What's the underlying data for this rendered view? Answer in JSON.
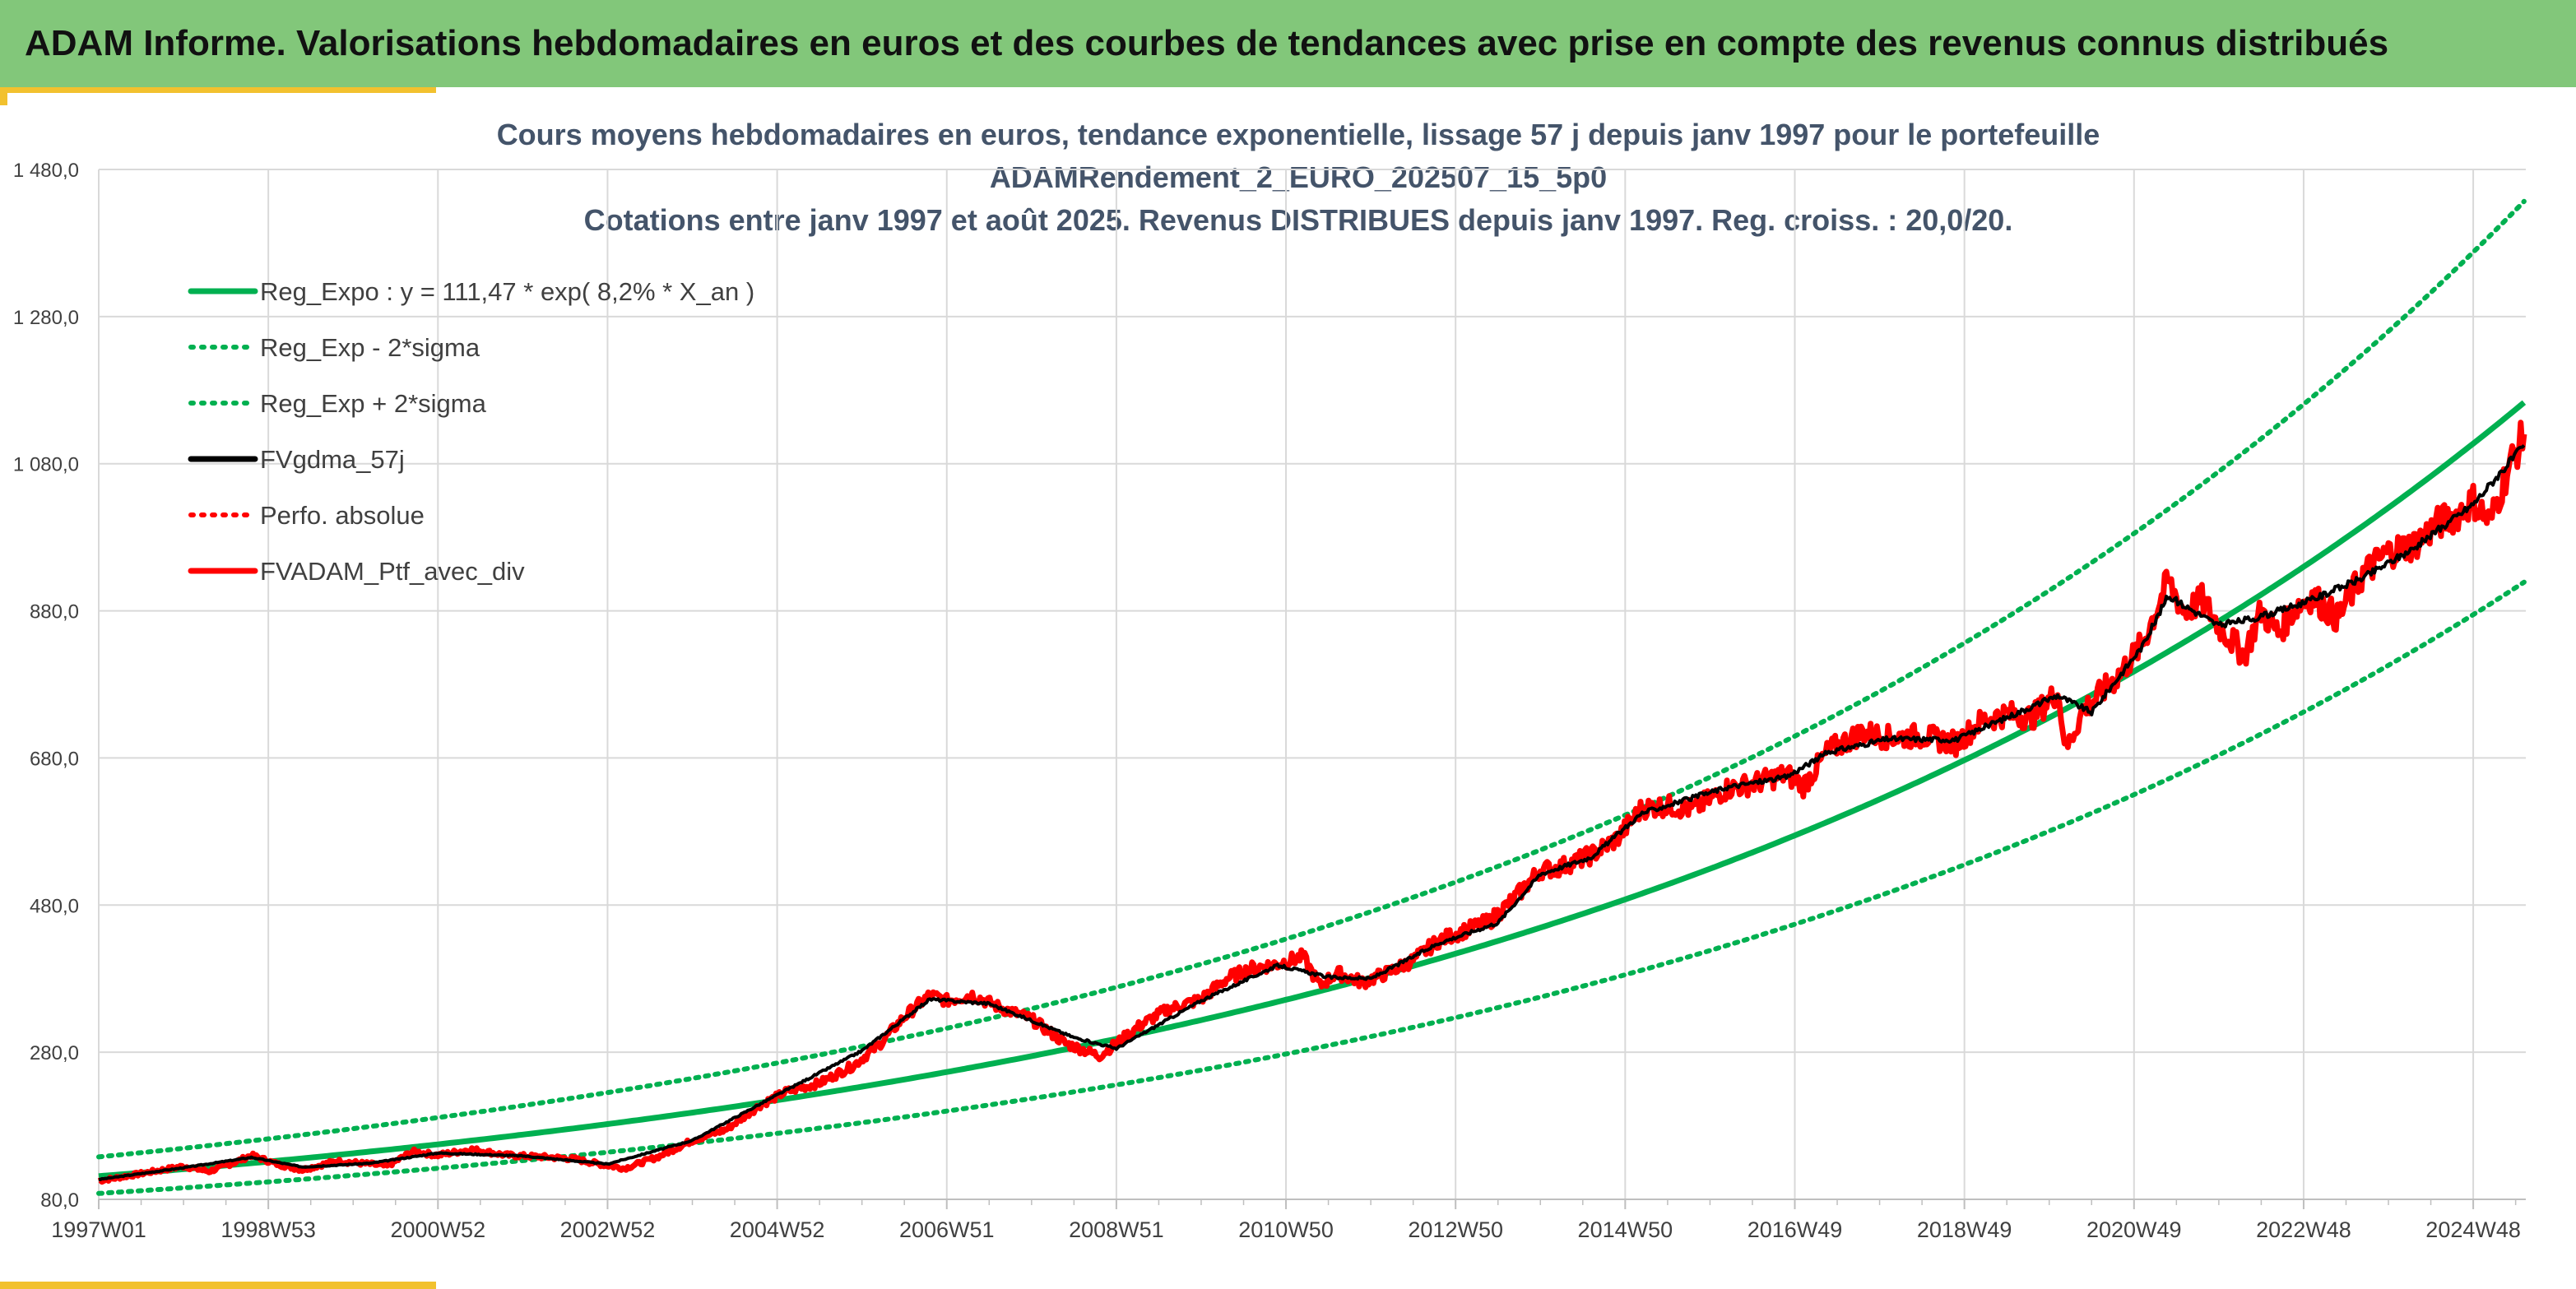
{
  "banner": {
    "title": "ADAM Informe. Valorisations hebdomadaires en euros et des courbes de tendances avec prise en compte des revenus connus distribués",
    "background": "#82c77a",
    "accent": "#f2c12e"
  },
  "chart_data": {
    "type": "line",
    "title_lines": [
      "Cours moyens hebdomadaires en euros, tendance exponentielle, lissage 57 j depuis janv 1997 pour le portefeuille",
      "ADAMRendement_2_EURO_202507_15_5p0",
      "Cotations entre janv 1997 et août 2025. Revenus DISTRIBUES depuis janv 1997. Reg. croiss. : 20,0/20."
    ],
    "xlabel": "",
    "ylabel": "",
    "ylim": [
      80,
      1480
    ],
    "yticks": [
      "80,0",
      "280,0",
      "480,0",
      "680,0",
      "880,0",
      "1 080,0",
      "1 280,0",
      "1 480,0"
    ],
    "ytick_values": [
      80,
      280,
      480,
      680,
      880,
      1080,
      1280,
      1480
    ],
    "xlim": [
      1997.0,
      2025.62
    ],
    "xticks": [
      "1997W01",
      "1998W53",
      "2000W52",
      "2002W52",
      "2004W52",
      "2006W51",
      "2008W51",
      "2010W50",
      "2012W50",
      "2014W50",
      "2016W49",
      "2018W49",
      "2020W49",
      "2022W48",
      "2024W48"
    ],
    "xtick_values": [
      1997.0,
      1999.0,
      2001.0,
      2003.0,
      2005.0,
      2007.0,
      2009.0,
      2011.0,
      2013.0,
      2015.0,
      2017.0,
      2019.0,
      2021.0,
      2023.0,
      2025.0
    ],
    "grid": true,
    "legend_position": "top-left",
    "legend": [
      {
        "label": "Reg_Expo : y = 111,47 * exp( 8,2% *  X_an )",
        "color": "#00b050",
        "style": "solid"
      },
      {
        "label": "Reg_Exp - 2*sigma",
        "color": "#00b050",
        "style": "dotted"
      },
      {
        "label": "Reg_Exp + 2*sigma",
        "color": "#00b050",
        "style": "dotted"
      },
      {
        "label": "FVgdma_57j",
        "color": "#000000",
        "style": "solid"
      },
      {
        "label": "Perfo. absolue",
        "color": "#ff0000",
        "style": "dotted"
      },
      {
        "label": "FVADAM_Ptf_avec_div",
        "color": "#ff0000",
        "style": "solid"
      }
    ],
    "trend": {
      "a": 111.47,
      "b": 0.082,
      "upper_factor": 1.235,
      "lower_factor": 0.79
    },
    "series": [
      {
        "name": "FVADAM_Ptf_avec_div",
        "color": "#ff0000",
        "x": [
          1997.0,
          1997.5,
          1998.0,
          1998.3,
          1998.6,
          1998.8,
          1999.1,
          1999.4,
          1999.8,
          2000.2,
          2000.4,
          2000.7,
          2001.0,
          2001.4,
          2001.8,
          2002.2,
          2002.6,
          2002.9,
          2003.2,
          2003.6,
          2004.0,
          2004.4,
          2004.8,
          2005.1,
          2005.5,
          2005.9,
          2006.2,
          2006.5,
          2006.8,
          2007.0,
          2007.3,
          2007.6,
          2008.0,
          2008.4,
          2008.8,
          2009.0,
          2009.3,
          2009.6,
          2010.0,
          2010.3,
          2010.6,
          2010.9,
          2011.2,
          2011.4,
          2011.6,
          2011.9,
          2012.2,
          2012.5,
          2012.8,
          2013.1,
          2013.4,
          2013.7,
          2014.0,
          2014.2,
          2014.6,
          2014.9,
          2015.2,
          2015.5,
          2015.8,
          2016.2,
          2016.5,
          2016.9,
          2017.1,
          2017.4,
          2017.8,
          2018.1,
          2018.5,
          2018.9,
          2019.2,
          2019.5,
          2019.8,
          2020.1,
          2020.2,
          2020.4,
          2020.8,
          2021.1,
          2021.4,
          2021.6,
          2021.8,
          2022.0,
          2022.3,
          2022.5,
          2022.7,
          2022.9,
          2023.1,
          2023.4,
          2023.7,
          2024.0,
          2024.3,
          2024.6,
          2024.8,
          2025.0,
          2025.2,
          2025.4,
          2025.6
        ],
        "y": [
          105,
          115,
          125,
          118,
          130,
          140,
          128,
          120,
          132,
          128,
          125,
          145,
          140,
          148,
          140,
          138,
          135,
          128,
          122,
          138,
          160,
          175,
          208,
          226,
          238,
          262,
          290,
          328,
          358,
          350,
          358,
          342,
          325,
          292,
          275,
          292,
          318,
          338,
          352,
          380,
          394,
          400,
          410,
          370,
          388,
          375,
          388,
          405,
          432,
          445,
          458,
          490,
          528,
          530,
          548,
          570,
          612,
          615,
          610,
          638,
          645,
          658,
          642,
          690,
          715,
          708,
          710,
          700,
          730,
          740,
          735,
          770,
          692,
          745,
          790,
          835,
          920,
          878,
          895,
          860,
          820,
          880,
          850,
          885,
          900,
          870,
          930,
          960,
          970,
          1000,
          1010,
          1030,
          1000,
          1070,
          1120
        ]
      },
      {
        "name": "FVgdma_57j",
        "color": "#000000",
        "x": [
          1997.0,
          1998.0,
          1998.8,
          1999.4,
          2000.2,
          2001.0,
          2002.0,
          2003.0,
          2004.0,
          2005.0,
          2006.0,
          2006.8,
          2007.5,
          2008.5,
          2009.0,
          2010.0,
          2010.9,
          2011.5,
          2012.0,
          2012.8,
          2013.5,
          2014.0,
          2014.6,
          2015.2,
          2016.2,
          2016.9,
          2017.4,
          2018.1,
          2018.9,
          2019.5,
          2020.1,
          2020.5,
          2021.1,
          2021.4,
          2022.0,
          2022.5,
          2023.1,
          2023.7,
          2024.3,
          2025.0,
          2025.6
        ],
        "y": [
          107,
          123,
          137,
          124,
          129,
          143,
          139,
          128,
          160,
          222,
          282,
          352,
          346,
          300,
          285,
          350,
          398,
          382,
          380,
          428,
          456,
          522,
          545,
          605,
          640,
          654,
          688,
          706,
          705,
          735,
          765,
          742,
          832,
          900,
          860,
          872,
          895,
          925,
          965,
          1025,
          1105
        ]
      }
    ]
  }
}
